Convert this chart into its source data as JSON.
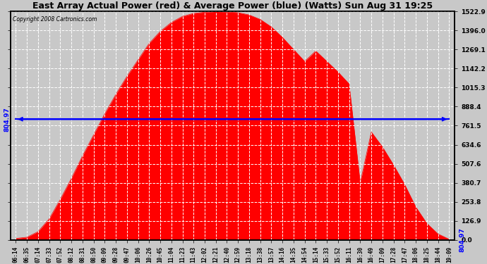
{
  "title": "East Array Actual Power (red) & Average Power (blue) (Watts) Sun Aug 31 19:25",
  "copyright": "Copyright 2008 Cartronics.com",
  "y_max": 1522.9,
  "y_min": 0.0,
  "y_ticks": [
    0.0,
    126.9,
    253.8,
    380.7,
    507.6,
    634.6,
    761.5,
    888.4,
    1015.3,
    1142.2,
    1269.1,
    1396.0,
    1522.9
  ],
  "avg_power": 804.97,
  "avg_label": "804.97",
  "x_labels": [
    "06:14",
    "06:35",
    "07:14",
    "07:33",
    "07:52",
    "08:12",
    "08:31",
    "08:50",
    "09:09",
    "09:28",
    "09:47",
    "10:06",
    "10:26",
    "10:45",
    "11:04",
    "11:23",
    "11:43",
    "12:02",
    "12:21",
    "12:40",
    "12:59",
    "13:18",
    "13:38",
    "13:57",
    "14:16",
    "14:35",
    "14:54",
    "15:14",
    "15:33",
    "15:52",
    "16:11",
    "16:30",
    "16:49",
    "17:09",
    "17:28",
    "17:47",
    "18:06",
    "18:25",
    "18:44",
    "19:09"
  ],
  "power_values": [
    10,
    18,
    55,
    140,
    270,
    410,
    560,
    700,
    840,
    970,
    1090,
    1200,
    1310,
    1390,
    1450,
    1490,
    1510,
    1518,
    1522,
    1520,
    1515,
    1500,
    1470,
    1420,
    1350,
    1270,
    1190,
    1260,
    1190,
    1120,
    1040,
    380,
    720,
    620,
    500,
    370,
    220,
    110,
    40,
    5
  ],
  "background_color": "#c8c8c8",
  "plot_bg_color": "#c8c8c8",
  "fill_color": "#ff0000",
  "line_color": "#0000ff",
  "grid_color": "#ffffff",
  "grid_style": "--",
  "border_color": "#000000"
}
